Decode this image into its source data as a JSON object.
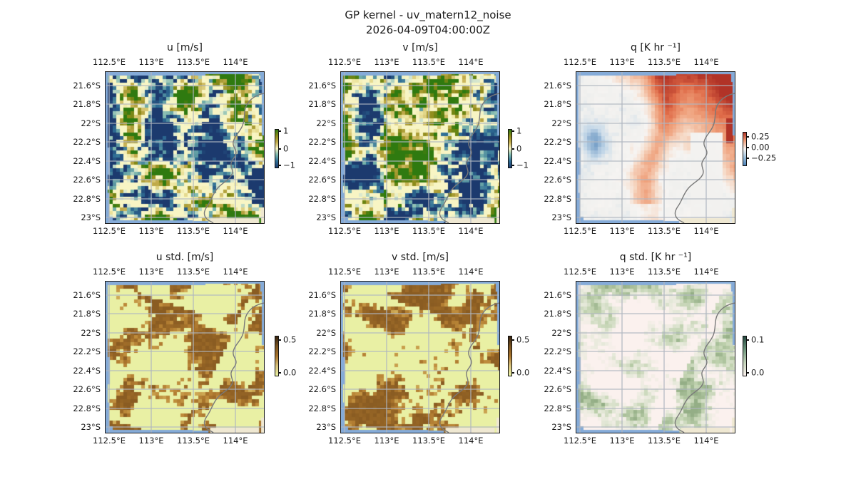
{
  "figure": {
    "title_line1": "GP kernel - uv_matern12_noise",
    "title_line2": "2026-04-09T04:00:00Z",
    "background": "#ffffff"
  },
  "axes": {
    "x_ticks": [
      "112.5°E",
      "113°E",
      "113.5°E",
      "114°E"
    ],
    "y_ticks": [
      "21.6°S",
      "21.8°S",
      "22°S",
      "22.2°S",
      "22.4°S",
      "22.6°S",
      "22.8°S",
      "23°S"
    ],
    "lon_range_deg_e": [
      112.5,
      114
    ],
    "lat_range_deg_s": [
      21.6,
      23
    ]
  },
  "geo": {
    "ocean_color": "#85abd8",
    "outside_land_color": "#efe8d2",
    "coast_color": "#7a7a7a",
    "grid_color": "#b0b6c0"
  },
  "chart_data": [
    {
      "id": "u",
      "type": "heatmap",
      "kind": "uv",
      "row": 0,
      "col": 0,
      "seed": 11,
      "title": "u [m/s]",
      "description": "Zonal wind estimate: pale-yellow near-zero field with sparse khaki/olive positive patches (west and centre) and teal negative patches (northeast), over NW Australia coastline.",
      "colorbar": {
        "ticks": [
          {
            "label": "1",
            "f": 0.05
          },
          {
            "label": "0",
            "f": 0.52
          },
          {
            "label": "−1",
            "f": 0.97
          }
        ],
        "gradient": [
          "#2f7a10",
          "#8d8b1a",
          "#c4ad4e",
          "#f8f5c4",
          "#7ab5ac",
          "#2f6e95",
          "#1c3a6e"
        ]
      },
      "palette": [
        [
          -1,
          "#1c3a6e"
        ],
        [
          -0.62,
          "#2f6e95"
        ],
        [
          -0.33,
          "#7ab5ac"
        ],
        [
          -0.12,
          "#d8e7cf"
        ],
        [
          0,
          "#f8f5c4"
        ],
        [
          0.12,
          "#ede5a0"
        ],
        [
          0.33,
          "#c4ad4e"
        ],
        [
          0.62,
          "#8d8b1a"
        ],
        [
          0.85,
          "#56810f"
        ],
        [
          1,
          "#2f7a10"
        ]
      ]
    },
    {
      "id": "v",
      "type": "heatmap",
      "kind": "uv",
      "row": 0,
      "col": 1,
      "seed": 29,
      "title": "v [m/s]",
      "description": "Meridional wind estimate: same diverging palette as u; olive patch near 113.4°E 22.3°S, teal streaks northeast and southwest.",
      "colorbar": {
        "ticks": [
          {
            "label": "1",
            "f": 0.05
          },
          {
            "label": "0",
            "f": 0.52
          },
          {
            "label": "−1",
            "f": 0.97
          }
        ],
        "gradient": [
          "#2f7a10",
          "#8d8b1a",
          "#c4ad4e",
          "#f8f5c4",
          "#7ab5ac",
          "#2f6e95",
          "#1c3a6e"
        ]
      },
      "palette": [
        [
          -1,
          "#1c3a6e"
        ],
        [
          -0.62,
          "#2f6e95"
        ],
        [
          -0.33,
          "#7ab5ac"
        ],
        [
          -0.12,
          "#d8e7cf"
        ],
        [
          0,
          "#f8f5c4"
        ],
        [
          0.12,
          "#ede5a0"
        ],
        [
          0.33,
          "#c4ad4e"
        ],
        [
          0.62,
          "#8d8b1a"
        ],
        [
          0.85,
          "#56810f"
        ],
        [
          1,
          "#2f7a10"
        ]
      ]
    },
    {
      "id": "q",
      "type": "heatmap",
      "kind": "q",
      "row": 0,
      "col": 2,
      "seed": 47,
      "title": "q [K hr ⁻¹]",
      "description": "Heating-rate field: near-white background, light red anomalies strengthening toward the northeast corner, a red diagonal band through the centre, dark-red cells hugging the coast near 114°E 22–22.2°S, faint blue patch near 112.6°E 22.2°S.",
      "colorbar": {
        "ticks": [
          {
            "label": "0.25",
            "f": 0.15
          },
          {
            "label": "0.00",
            "f": 0.48
          },
          {
            "label": "−0.25",
            "f": 0.81
          }
        ],
        "gradient": [
          "#b13327",
          "#ef9f7a",
          "#f6f4f2",
          "#9ec2de",
          "#4a7fb5"
        ]
      },
      "palette": [
        [
          -0.3,
          "#4a7fb5"
        ],
        [
          -0.12,
          "#c3d7e8"
        ],
        [
          -0.02,
          "#f0f0ee"
        ],
        [
          0.04,
          "#f6f4f2"
        ],
        [
          0.12,
          "#f6d8c4"
        ],
        [
          0.25,
          "#efa17c"
        ],
        [
          0.38,
          "#df6a47"
        ],
        [
          0.5,
          "#b13327"
        ]
      ]
    },
    {
      "id": "u_std",
      "type": "heatmap",
      "kind": "std_uv",
      "row": 1,
      "col": 0,
      "seed": 63,
      "title": "u std. [m/s]",
      "description": "Posterior std of u: pale yellow-green low-uncertainty field with broad diagonal brown bands of higher uncertainty (~0.3–0.5 m/s).",
      "colorbar": {
        "ticks": [
          {
            "label": "0.5",
            "f": 0.11
          },
          {
            "label": "0.0",
            "f": 0.95
          }
        ],
        "gradient": [
          "#34220f",
          "#7a5420",
          "#a9742c",
          "#d8c27c",
          "#e9f0a4"
        ]
      },
      "palette": [
        [
          0,
          "#e9f0a4"
        ],
        [
          0.18,
          "#e4e193"
        ],
        [
          0.3,
          "#d3b35e"
        ],
        [
          0.42,
          "#bd8a3a"
        ],
        [
          0.52,
          "#a9742c"
        ],
        [
          0.62,
          "#8a5c22"
        ]
      ]
    },
    {
      "id": "v_std",
      "type": "heatmap",
      "kind": "std_uv",
      "row": 1,
      "col": 1,
      "seed": 77,
      "title": "v std. [m/s]",
      "description": "Posterior std of v: same palette and banded structure as u std., brown bands slightly shifted.",
      "colorbar": {
        "ticks": [
          {
            "label": "0.5",
            "f": 0.11
          },
          {
            "label": "0.0",
            "f": 0.95
          }
        ],
        "gradient": [
          "#34220f",
          "#7a5420",
          "#a9742c",
          "#d8c27c",
          "#e9f0a4"
        ]
      },
      "palette": [
        [
          0,
          "#e9f0a4"
        ],
        [
          0.18,
          "#e4e193"
        ],
        [
          0.3,
          "#d3b35e"
        ],
        [
          0.42,
          "#bd8a3a"
        ],
        [
          0.52,
          "#a9742c"
        ],
        [
          0.62,
          "#8a5c22"
        ]
      ]
    },
    {
      "id": "q_std",
      "type": "heatmap",
      "kind": "std_q",
      "row": 1,
      "col": 2,
      "seed": 91,
      "title": "q std. [K hr ⁻¹]",
      "description": "Posterior std of q: very pale pink background with soft sage-green diagonal bands of modest uncertainty (up to ~0.1 K/hr).",
      "colorbar": {
        "ticks": [
          {
            "label": "0.1",
            "f": 0.11
          },
          {
            "label": "0.0",
            "f": 0.95
          }
        ],
        "gradient": [
          "#24473f",
          "#6e957c",
          "#c4d3ba",
          "#fbf1ee"
        ]
      },
      "palette": [
        [
          0,
          "#fbf1ee"
        ],
        [
          0.04,
          "#e6e9da"
        ],
        [
          0.08,
          "#bccfab"
        ],
        [
          0.12,
          "#94ae86"
        ]
      ]
    }
  ]
}
